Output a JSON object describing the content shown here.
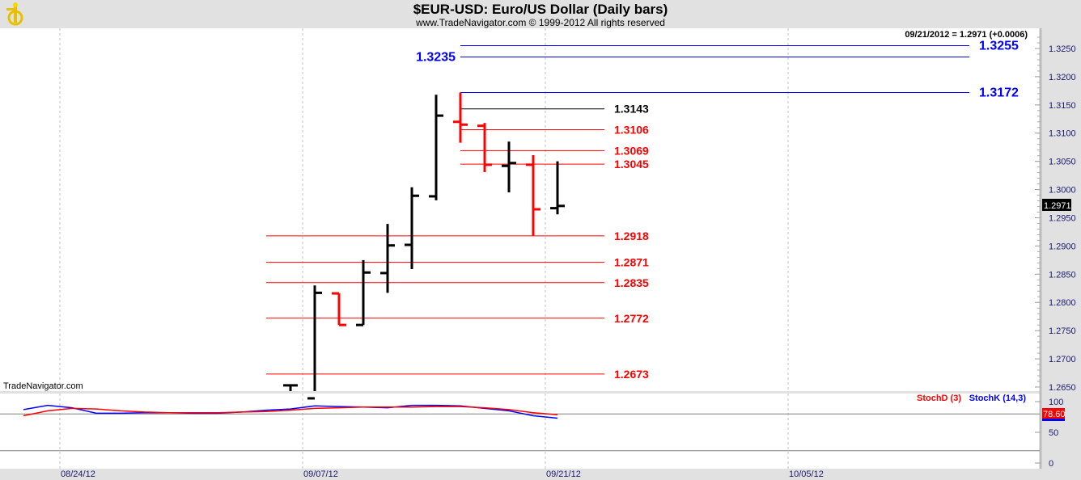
{
  "header": {
    "title": "$EUR-USD:  Euro/US Dollar  (Daily bars)",
    "subtitle": "www.TradeNavigator.com © 1999-2012 All rights reserved",
    "watermark": "TradeNavigator.com"
  },
  "colors": {
    "up_bar": "#000000",
    "down_bar": "#ff0000",
    "support": "#ff0000",
    "resistance": "#0000ff",
    "stoch_d": "#ff0000",
    "stoch_k": "#0000ff",
    "background": "#ffffff",
    "panel": "#e1e1e1"
  },
  "chart_data": [
    {
      "type": "ohlc",
      "readout": "09/21/2012 = 1.2971 (+0.0006)",
      "last_price_label": "1.2971",
      "ylim": [
        1.2645,
        1.327
      ],
      "y_ticks": [
        "1.3250",
        "1.3200",
        "1.3150",
        "1.3100",
        "1.3050",
        "1.3000",
        "1.2950",
        "1.2900",
        "1.2850",
        "1.2800",
        "1.2750",
        "1.2700",
        "1.2650"
      ],
      "x_ticks": [
        {
          "label": "08/24/12",
          "index": 2
        },
        {
          "label": "09/07/12",
          "index": 12
        },
        {
          "label": "09/21/12",
          "index": 22
        },
        {
          "label": "10/05/12",
          "index": 32
        }
      ],
      "grid": "vertical dashed",
      "bars": [
        {
          "date": "09/06/12",
          "index": 11,
          "open": 1.2653,
          "high": 1.2653,
          "low": 1.264,
          "close": 1.2653
        },
        {
          "date": "09/07/12",
          "index": 12,
          "open": 1.263,
          "high": 1.283,
          "low": 1.263,
          "close": 1.2817
        },
        {
          "date": "09/10/12",
          "index": 13,
          "open": 1.2816,
          "high": 1.2816,
          "low": 1.276,
          "close": 1.276
        },
        {
          "date": "09/11/12",
          "index": 14,
          "open": 1.276,
          "high": 1.2875,
          "low": 1.276,
          "close": 1.2853
        },
        {
          "date": "09/12/12",
          "index": 15,
          "open": 1.2852,
          "high": 1.2939,
          "low": 1.2817,
          "close": 1.2901
        },
        {
          "date": "09/13/12",
          "index": 16,
          "open": 1.2902,
          "high": 1.3004,
          "low": 1.2859,
          "close": 1.2989
        },
        {
          "date": "09/14/12",
          "index": 17,
          "open": 1.2988,
          "high": 1.3168,
          "low": 1.2981,
          "close": 1.3131
        },
        {
          "date": "09/17/12",
          "index": 18,
          "open": 1.312,
          "high": 1.3172,
          "low": 1.3083,
          "close": 1.3115
        },
        {
          "date": "09/18/12",
          "index": 19,
          "open": 1.3113,
          "high": 1.3118,
          "low": 1.3031,
          "close": 1.3044
        },
        {
          "date": "09/19/12",
          "index": 20,
          "open": 1.3042,
          "high": 1.3085,
          "low": 1.2995,
          "close": 1.3047
        },
        {
          "date": "09/20/12",
          "index": 21,
          "open": 1.3044,
          "high": 1.3061,
          "low": 1.2918,
          "close": 1.2965
        },
        {
          "date": "09/21/12",
          "index": 22,
          "open": 1.2967,
          "high": 1.305,
          "low": 1.2956,
          "close": 1.2971
        }
      ],
      "levels": [
        {
          "label": "1.3255",
          "value": 1.3255,
          "color": "#0000ff",
          "group": "far",
          "label_side": "right"
        },
        {
          "label": "1.3235",
          "value": 1.3235,
          "color": "#0000ff",
          "group": "far",
          "label_side": "left"
        },
        {
          "label": "1.3172",
          "value": 1.3172,
          "color": "#0000ff",
          "group": "far",
          "label_side": "right"
        },
        {
          "label": "1.3143",
          "value": 1.3143,
          "color": "#000000",
          "group": "near",
          "label_side": "right"
        },
        {
          "label": "1.3106",
          "value": 1.3106,
          "color": "#ff0000",
          "group": "near",
          "label_side": "right"
        },
        {
          "label": "1.3069",
          "value": 1.3069,
          "color": "#ff0000",
          "group": "near",
          "label_side": "right"
        },
        {
          "label": "1.3045",
          "value": 1.3045,
          "color": "#ff0000",
          "group": "near",
          "label_side": "right"
        },
        {
          "label": "1.2918",
          "value": 1.2918,
          "color": "#ff0000",
          "group": "low",
          "label_side": "right"
        },
        {
          "label": "1.2871",
          "value": 1.2871,
          "color": "#ff0000",
          "group": "low",
          "label_side": "right"
        },
        {
          "label": "1.2835",
          "value": 1.2835,
          "color": "#ff0000",
          "group": "low",
          "label_side": "right"
        },
        {
          "label": "1.2772",
          "value": 1.2772,
          "color": "#ff0000",
          "group": "low",
          "label_side": "right"
        },
        {
          "label": "1.2673",
          "value": 1.2673,
          "color": "#ff0000",
          "group": "low",
          "label_side": "right"
        }
      ]
    },
    {
      "type": "line",
      "ylim": [
        0,
        100
      ],
      "y_ticks": [
        "100",
        "50",
        "0"
      ],
      "reference_lines": [
        80,
        20
      ],
      "readout": "78.60",
      "series": [
        {
          "name": "StochD (3)",
          "color": "#ff0000",
          "values": [
            77,
            85,
            89,
            88,
            85,
            83,
            82,
            82,
            82,
            83,
            84,
            86,
            89,
            90,
            91,
            91,
            91,
            92,
            92,
            90,
            87,
            82,
            78.6
          ]
        },
        {
          "name": "StochK (14,3)",
          "color": "#0000ff",
          "values": [
            87,
            94,
            90,
            81,
            81,
            82,
            82,
            81,
            81,
            83,
            86,
            88,
            93,
            92,
            91,
            90,
            94,
            94,
            93,
            89,
            85,
            77,
            73
          ]
        }
      ]
    }
  ]
}
